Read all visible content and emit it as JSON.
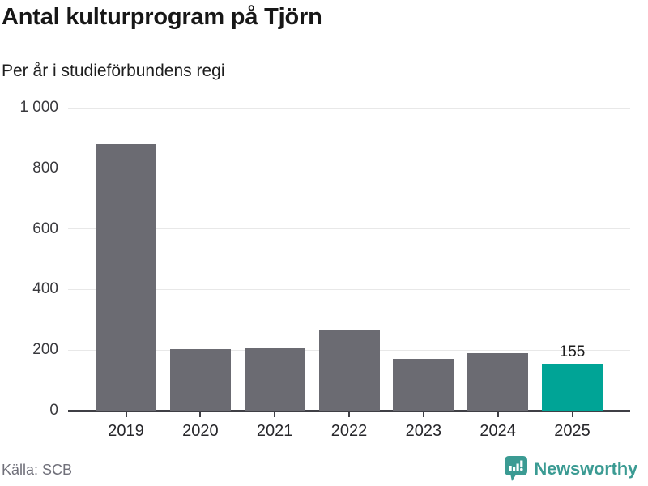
{
  "header": {
    "title": "Antal kulturprogram på Tjörn",
    "subtitle": "Per år i studieförbundens regi"
  },
  "chart_data": {
    "type": "bar",
    "title": "Antal kulturprogram på Tjörn",
    "subtitle": "Per år i studieförbundens regi",
    "categories": [
      "2019",
      "2020",
      "2021",
      "2022",
      "2023",
      "2024",
      "2025"
    ],
    "values": [
      880,
      202,
      205,
      268,
      172,
      190,
      155
    ],
    "value_labels": [
      "",
      "",
      "",
      "",
      "",
      "",
      "155"
    ],
    "highlight_index": 6,
    "xlabel": "",
    "ylabel": "",
    "ylim": [
      0,
      1000
    ],
    "yticks": [
      0,
      200,
      400,
      600,
      800,
      1000
    ],
    "ytick_labels": [
      "0",
      "200",
      "400",
      "600",
      "800",
      "1 000"
    ],
    "grid": true,
    "legend": "none",
    "bar_color": "#6b6b72",
    "highlight_color": "#00a496"
  },
  "footer": {
    "source": "Källa: SCB",
    "brand": "Newsworthy"
  },
  "colors": {
    "bar_gray": "#6b6b72",
    "accent_teal": "#00a496",
    "logo_teal": "#3b9b93",
    "gridline": "#e8e8e8",
    "axis": "#3f3f45",
    "text_dark": "#171717",
    "text_muted": "#70707a"
  }
}
